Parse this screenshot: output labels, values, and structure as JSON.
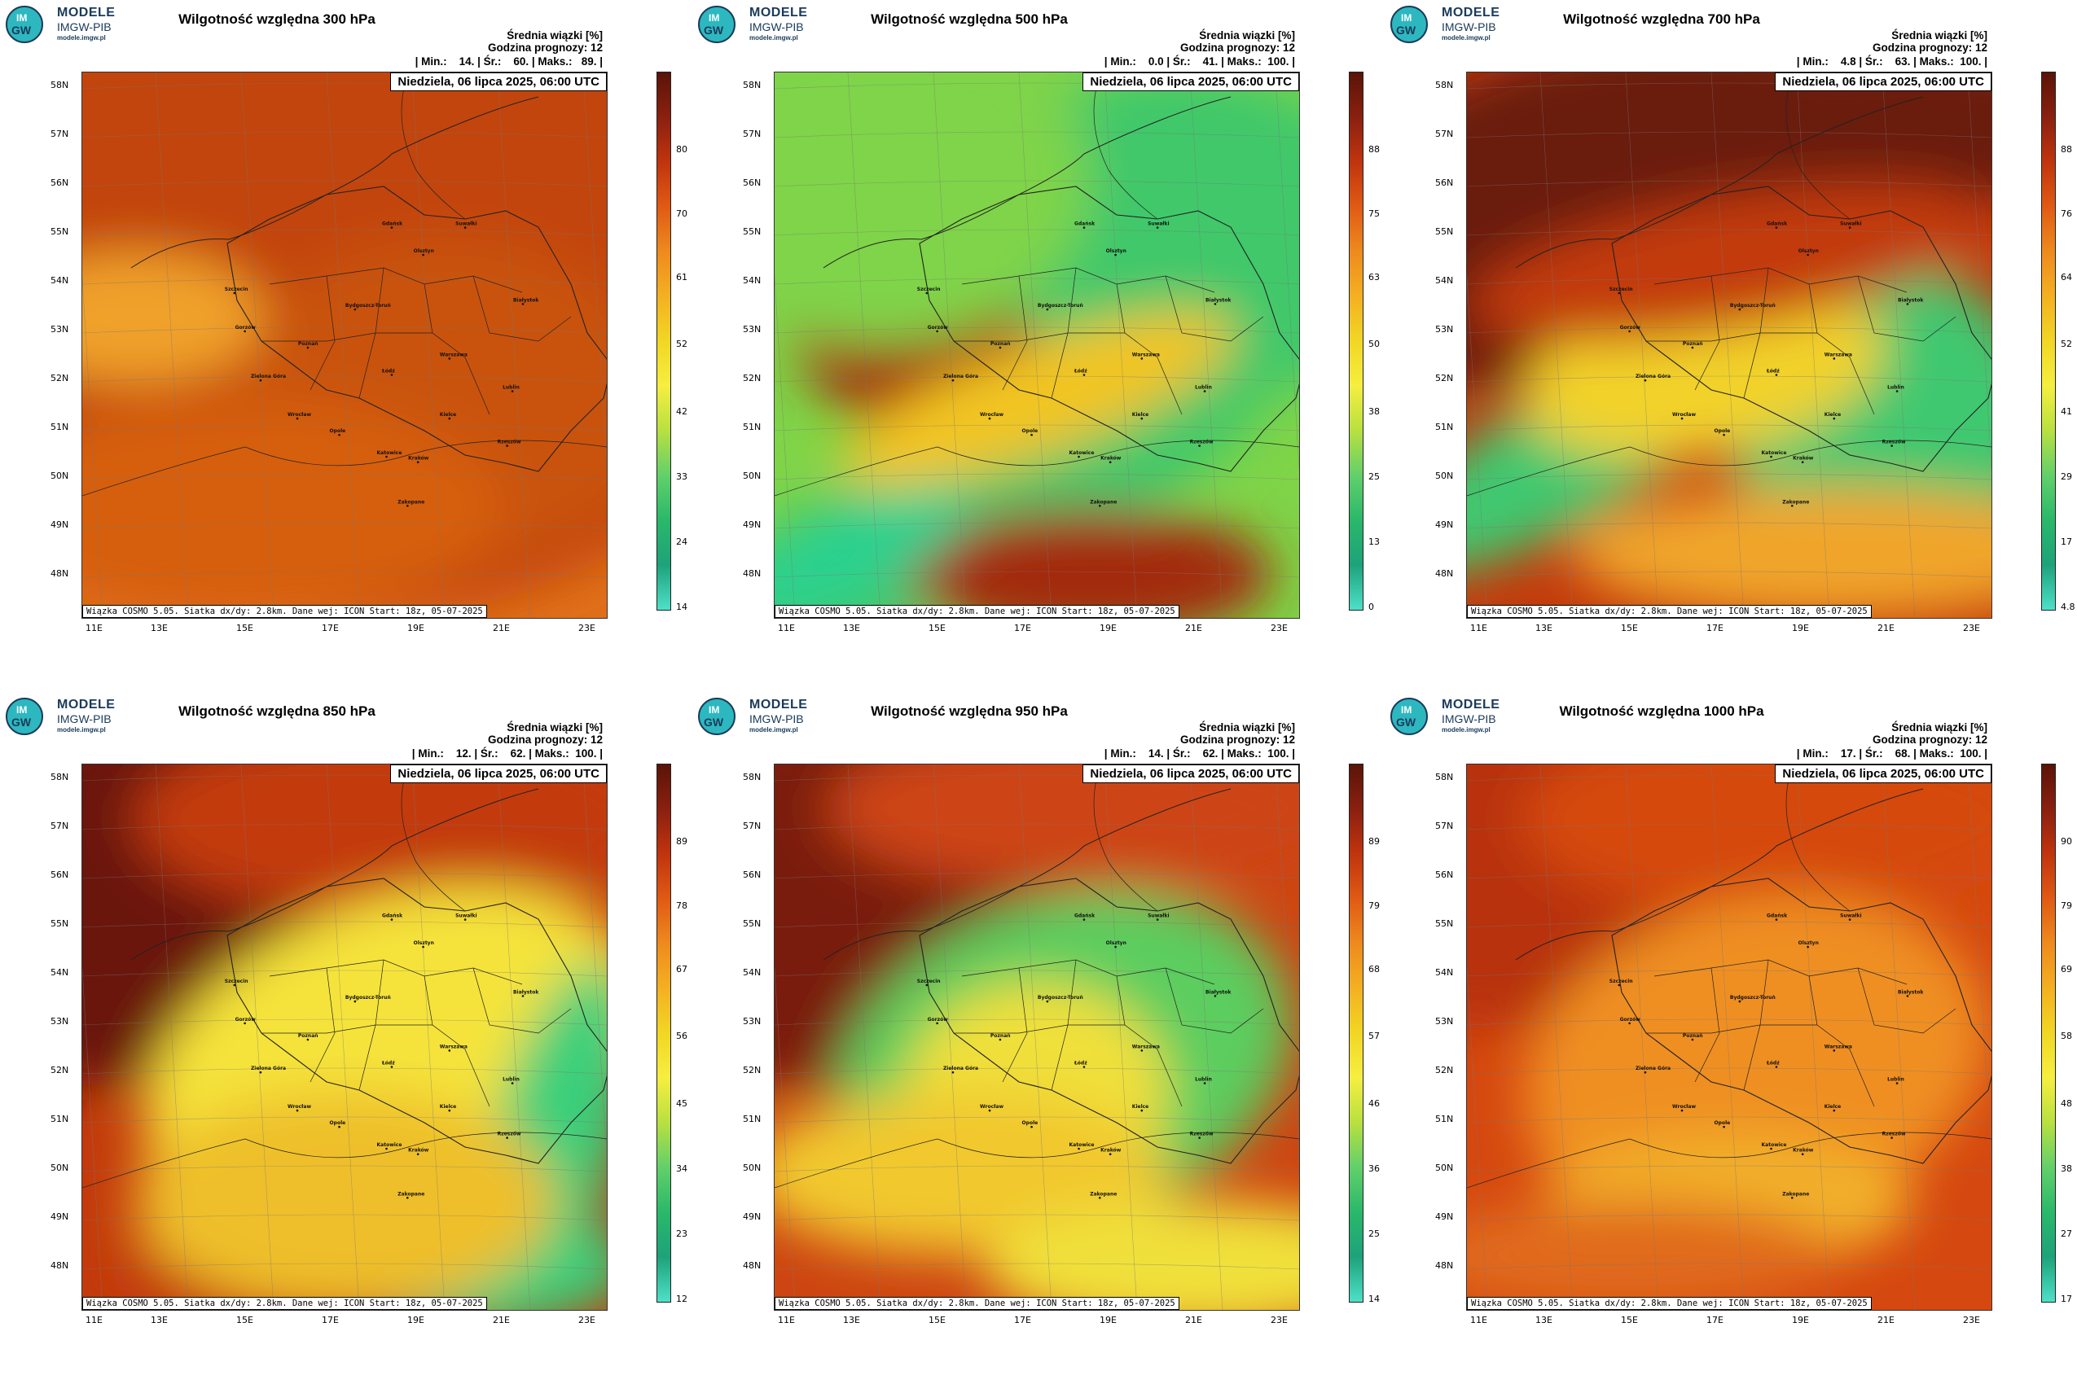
{
  "brand": {
    "line1": "MODELE",
    "line2": "IMGW-PIB",
    "line3": "modele.imgw.pl",
    "logo_text_top": "IM",
    "logo_text_bottom": "GW"
  },
  "common": {
    "date": "Niedziela, 06 lipca 2025, 06:00 UTC",
    "footer": "Wiązka COSMO 5.05. Siatka dx/dy: 2.8km. Dane wej: ICON Start: 18z, 05-07-2025",
    "meta1": "Średnia wiązki [%]",
    "meta2": "Godzina prognozy: 12",
    "lat_labels": [
      "58N",
      "57N",
      "56N",
      "55N",
      "54N",
      "53N",
      "52N",
      "51N",
      "50N",
      "49N",
      "48N"
    ],
    "lon_labels": [
      "11E",
      "13E",
      "15E",
      "17E",
      "19E",
      "21E",
      "23E"
    ],
    "cities": [
      "Gdańsk",
      "Suwałki",
      "Olsztyn",
      "Szczecin",
      "Bydgoszcz-Toruń",
      "Białystok",
      "Gorzów",
      "Poznań",
      "Warszawa",
      "Zielona Góra",
      "Łódź",
      "Lublin",
      "Wrocław",
      "Kielce",
      "Opole",
      "Rzeszów",
      "Katowice",
      "Kraków",
      "Zakopane"
    ]
  },
  "panels": [
    {
      "title": "Wilgotność względna 300 hPa",
      "stats": "| Min.:    14. | Śr.:    60. | Maks.:   89. |",
      "min": 14,
      "mean": 60,
      "max": 89,
      "ticks": [
        "80",
        "70",
        "61",
        "52",
        "42",
        "33",
        "24",
        "14"
      ]
    },
    {
      "title": "Wilgotność względna 500 hPa",
      "stats": "| Min.:    0.0 | Śr.:    41. | Maks.:  100. |",
      "min": 0.0,
      "mean": 41,
      "max": 100,
      "ticks": [
        "88",
        "75",
        "63",
        "50",
        "38",
        "25",
        "13",
        "0"
      ]
    },
    {
      "title": "Wilgotność względna 700 hPa",
      "stats": "| Min.:    4.8 | Śr.:    63. | Maks.:  100. |",
      "min": 4.8,
      "mean": 63,
      "max": 100,
      "ticks": [
        "88",
        "76",
        "64",
        "52",
        "41",
        "29",
        "17",
        "4.8"
      ]
    },
    {
      "title": "Wilgotność względna 850 hPa",
      "stats": "| Min.:    12. | Śr.:    62. | Maks.:  100. |",
      "min": 12,
      "mean": 62,
      "max": 100,
      "ticks": [
        "89",
        "78",
        "67",
        "56",
        "45",
        "34",
        "23",
        "12"
      ]
    },
    {
      "title": "Wilgotność względna 950 hPa",
      "stats": "| Min.:    14. | Śr.:    62. | Maks.:  100. |",
      "min": 14,
      "mean": 62,
      "max": 100,
      "ticks": [
        "89",
        "79",
        "68",
        "57",
        "46",
        "36",
        "25",
        "14"
      ]
    },
    {
      "title": "Wilgotność względna 1000 hPa",
      "stats": "| Min.:    17. | Śr.:    68. | Maks.:  100. |",
      "min": 17,
      "mean": 68,
      "max": 100,
      "ticks": [
        "90",
        "79",
        "69",
        "58",
        "48",
        "38",
        "27",
        "17"
      ]
    }
  ]
}
